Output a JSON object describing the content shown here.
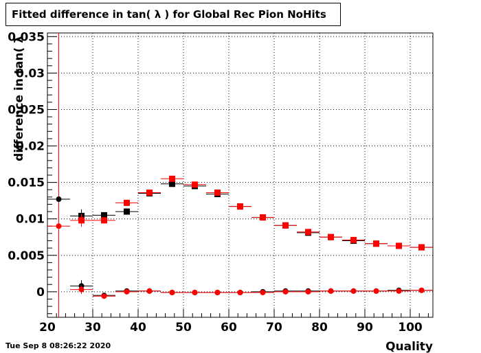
{
  "chart_data": {
    "type": "scatter",
    "title": "Fitted difference in tan( λ ) for Global Rec Pion NoHits",
    "xlabel": "Quality",
    "ylabel": "difference in tan( λ",
    "xlim": [
      20,
      105
    ],
    "ylim": [
      -0.0035,
      0.0355
    ],
    "x_ticks": [
      20,
      30,
      40,
      50,
      60,
      70,
      80,
      90,
      100
    ],
    "y_ticks": [
      0,
      0.005,
      0.01,
      0.015,
      0.02,
      0.025,
      0.03,
      0.035
    ],
    "x_tick_labels": [
      "20",
      "30",
      "40",
      "50",
      "60",
      "70",
      "80",
      "90",
      "100"
    ],
    "y_tick_labels": [
      "0",
      "0.005",
      "0.01",
      "0.015",
      "0.02",
      "0.025",
      "0.03",
      "0.035"
    ],
    "grid": true,
    "reference_line_x": 22.5,
    "series": [
      {
        "marker": "square",
        "color": "#000000",
        "x": [
          27.5,
          32.5,
          37.5,
          42.5,
          47.5,
          52.5,
          57.5,
          62.5,
          67.5,
          72.5,
          77.5,
          82.5,
          87.5,
          92.5,
          97.5,
          102.5
        ],
        "y": [
          0.0104,
          0.0105,
          0.011,
          0.0135,
          0.0148,
          0.0145,
          0.0134,
          0.0117,
          0.0102,
          0.0091,
          0.0081,
          0.0075,
          0.007,
          0.0066,
          0.0063,
          0.0061
        ],
        "yerr": [
          0.0009,
          0.0004,
          0.0002,
          0.0002,
          0.0002,
          0.0002,
          0.0002,
          0.0001,
          0.0001,
          0.0001,
          0.0001,
          0.0001,
          0.0001,
          0.0001,
          0.0001,
          0.0001
        ]
      },
      {
        "marker": "square",
        "color": "#ff0000",
        "x": [
          27.5,
          32.5,
          37.5,
          42.5,
          47.5,
          52.5,
          57.5,
          62.5,
          67.5,
          72.5,
          77.5,
          82.5,
          87.5,
          92.5,
          97.5,
          102.5
        ],
        "y": [
          0.0098,
          0.0098,
          0.0122,
          0.0136,
          0.0155,
          0.0147,
          0.0136,
          0.0117,
          0.0102,
          0.0091,
          0.0082,
          0.0075,
          0.0071,
          0.0066,
          0.0063,
          0.0061
        ],
        "yerr": [
          0.0009,
          0.0004,
          0.0002,
          0.0002,
          0.0002,
          0.0002,
          0.0002,
          0.0001,
          0.0001,
          0.0001,
          0.0001,
          0.0001,
          0.0001,
          0.0001,
          0.0001,
          0.0001
        ]
      },
      {
        "marker": "circle",
        "color": "#000000",
        "x": [
          22.5,
          27.5,
          32.5,
          37.5,
          42.5,
          47.5,
          52.5,
          57.5,
          62.5,
          67.5,
          72.5,
          77.5,
          82.5,
          87.5,
          92.5,
          97.5,
          102.5
        ],
        "y": [
          0.0127,
          0.0008,
          -0.0005,
          0.0001,
          0.0001,
          -0.0001,
          -0.0001,
          -0.0001,
          -0.0001,
          0.0,
          0.0001,
          0.0001,
          0.0001,
          0.0001,
          0.0001,
          0.0002,
          0.0002
        ],
        "yerr": [
          0.0002,
          0.0008,
          0.0003,
          0.0002,
          0.0001,
          0.0001,
          0.0001,
          0.0001,
          0.0001,
          0.0001,
          0.0001,
          0.0001,
          0.0001,
          0.0001,
          0.0001,
          0.0001,
          0.0001
        ]
      },
      {
        "marker": "circle",
        "color": "#ff0000",
        "x": [
          22.5,
          27.5,
          32.5,
          37.5,
          42.5,
          47.5,
          52.5,
          57.5,
          62.5,
          67.5,
          72.5,
          77.5,
          82.5,
          87.5,
          92.5,
          97.5,
          102.5
        ],
        "y": [
          0.009,
          0.0003,
          -0.0006,
          0.0,
          0.0001,
          -0.0001,
          -0.0001,
          -0.0001,
          -0.0001,
          -0.0001,
          0.0,
          0.0,
          0.0001,
          0.0001,
          0.0001,
          0.0001,
          0.0002
        ],
        "yerr": [
          0.0002,
          0.0006,
          0.0003,
          0.0002,
          0.0001,
          0.0001,
          0.0001,
          0.0001,
          0.0001,
          0.0001,
          0.0001,
          0.0001,
          0.0001,
          0.0001,
          0.0001,
          0.0001,
          0.0001
        ]
      }
    ]
  },
  "footer": {
    "timestamp": "Tue Sep  8 08:26:22 2020"
  }
}
